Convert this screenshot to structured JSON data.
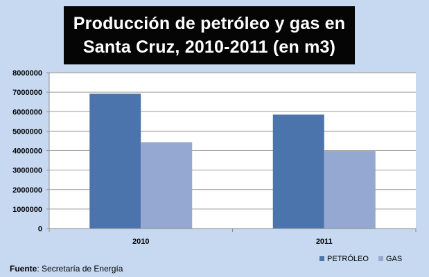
{
  "chart_data": {
    "type": "bar",
    "title_lines": [
      "Producción de petróleo  y gas en",
      "Santa Cruz, 2010-2011  (en m3)"
    ],
    "categories": [
      "2010",
      "2011"
    ],
    "series": [
      {
        "name": "PETRÓLEO",
        "values": [
          6920000,
          5850000
        ],
        "color": "#4a74ab"
      },
      {
        "name": "GAS",
        "values": [
          4430000,
          3980000
        ],
        "color": "#94a8d2"
      }
    ],
    "ylim": [
      0,
      8000000
    ],
    "yticks": [
      "0",
      "1000000",
      "2000000",
      "3000000",
      "4000000",
      "5000000",
      "6000000",
      "7000000",
      "8000000"
    ],
    "grid": true,
    "legend_position": "bottom-right"
  },
  "source": {
    "label": "Fuente",
    "text": ": Secretaría de Energía"
  }
}
